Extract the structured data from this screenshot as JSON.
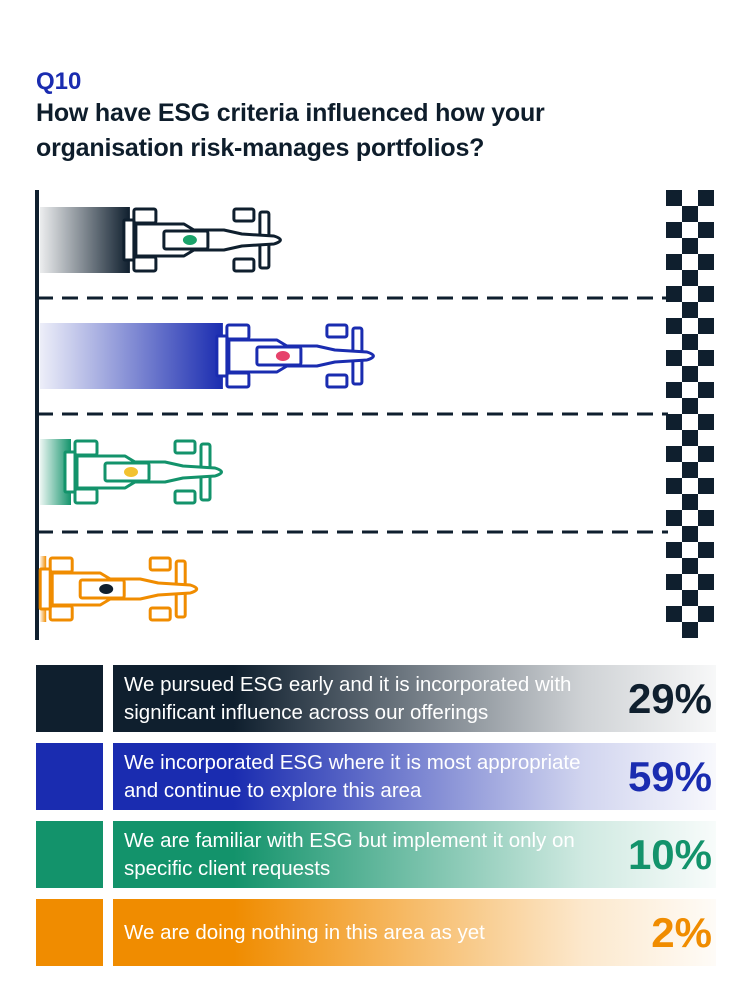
{
  "heading": {
    "question_number": "Q10",
    "question_text": "How have ESG criteria influenced how your organisation risk-manages portfolios?"
  },
  "chart_data": {
    "type": "bar",
    "title": "How have ESG criteria influenced how your organisation risk-manages portfolios?",
    "categories": [
      "We pursued ESG early and it is incorporated with significant influence across our offerings",
      "We incorporated ESG where it is most appropriate and continue to explore this area",
      "We are familiar with ESG but implement it only on specific client requests",
      "We are doing nothing in this area as yet"
    ],
    "values": [
      29,
      59,
      10,
      2
    ],
    "unit": "%",
    "colors": [
      "#0f1f2e",
      "#1a2cb0",
      "#13936b",
      "#f08c00"
    ],
    "accent_colors": [
      "#1aa26a",
      "#e6426b",
      "#f2c230",
      "#0f1f2e"
    ],
    "legend_placement": "bottom",
    "grid": false
  },
  "legend": [
    {
      "label": "We pursued ESG early and it is incorporated with significant influence across our offerings",
      "percent": "29%",
      "color": "#0f1f2e"
    },
    {
      "label": "We incorporated ESG where it is most appropriate and continue to explore this area",
      "percent": "59%",
      "color": "#1a2cb0"
    },
    {
      "label": "We are familiar with ESG but implement it only on specific client requests",
      "percent": "10%",
      "color": "#13936b"
    },
    {
      "label": "We are doing nothing in this area as yet",
      "percent": "2%",
      "color": "#f08c00"
    }
  ],
  "icons": {
    "car": "race-car-icon",
    "finish": "checkered-flag-icon"
  }
}
